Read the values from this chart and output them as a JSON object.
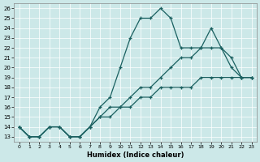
{
  "xlabel": "Humidex (Indice chaleur)",
  "background_color": "#cce8e8",
  "line_color": "#1a6060",
  "xlim": [
    -0.5,
    23.5
  ],
  "ylim": [
    12.5,
    26.5
  ],
  "yticks": [
    13,
    14,
    15,
    16,
    17,
    18,
    19,
    20,
    21,
    22,
    23,
    24,
    25,
    26
  ],
  "xticks": [
    0,
    1,
    2,
    3,
    4,
    5,
    6,
    7,
    8,
    9,
    10,
    11,
    12,
    13,
    14,
    15,
    16,
    17,
    18,
    19,
    20,
    21,
    22,
    23
  ],
  "series1": [
    14,
    13,
    13,
    14,
    14,
    13,
    13,
    14,
    16,
    17,
    20,
    23,
    25,
    25,
    26,
    25,
    22,
    22,
    22,
    24,
    22,
    20,
    19,
    19
  ],
  "series2": [
    14,
    13,
    13,
    14,
    14,
    13,
    13,
    14,
    15,
    15,
    16,
    16,
    17,
    17,
    18,
    18,
    18,
    18,
    19,
    19,
    19,
    19,
    19,
    19
  ],
  "series3": [
    14,
    13,
    13,
    14,
    14,
    13,
    13,
    14,
    15,
    16,
    16,
    17,
    18,
    18,
    19,
    20,
    21,
    21,
    22,
    22,
    22,
    21,
    19,
    19
  ]
}
